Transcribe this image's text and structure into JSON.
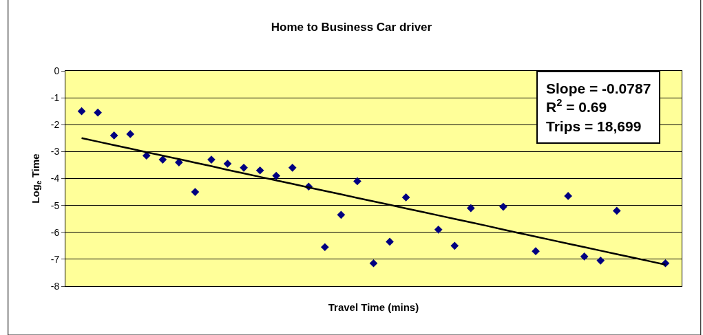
{
  "chart_data": {
    "type": "scatter",
    "title": "Home to Business Car driver",
    "xlabel": "Travel Time (mins)",
    "ylabel": "Log$_{e}$ Time",
    "categories": [
      null,
      null,
      null,
      null,
      null,
      null,
      null,
      null,
      null,
      null,
      null,
      null,
      null,
      null,
      null,
      null,
      null,
      null,
      null,
      null,
      null,
      null,
      null,
      null,
      null,
      null,
      null,
      null,
      null,
      null,
      null,
      null,
      null,
      null,
      null,
      null,
      null
    ],
    "series": [
      {
        "color": "#000080",
        "marker": "diamond",
        "values": [
          -1.5,
          -1.55,
          -2.4,
          -2.35,
          -3.15,
          -3.3,
          -3.4,
          -4.5,
          -3.3,
          -3.45,
          -3.6,
          -3.7,
          -3.9,
          -3.6,
          -4.3,
          -6.55,
          -5.35,
          -4.1,
          -7.15,
          -6.35,
          -4.7,
          null,
          -5.9,
          -6.5,
          -5.1,
          null,
          -5.05,
          null,
          -6.7,
          null,
          -4.65,
          -6.9,
          -7.05,
          -5.2,
          null,
          null,
          -7.15
        ]
      },
      {
        "type": "line",
        "color": "#000000",
        "marker": "none",
        "values": [
          -2.5,
          -2.63,
          -2.76,
          -2.89,
          -3.02,
          -3.15,
          -3.28,
          -3.41,
          -3.54,
          -3.68,
          -3.81,
          -3.94,
          -4.07,
          -4.2,
          -4.33,
          -4.46,
          -4.59,
          -4.72,
          -4.85,
          -4.98,
          -5.11,
          -5.24,
          -5.37,
          -5.5,
          -5.63,
          -5.76,
          -5.9,
          -6.03,
          -6.16,
          -6.29,
          -6.42,
          -6.55,
          -6.68,
          -6.81,
          -6.94,
          -7.07,
          -7.2
        ]
      }
    ],
    "ylim": [
      -8,
      0
    ],
    "yticks": [
      0,
      -1,
      -2,
      -3,
      -4,
      -5,
      -6,
      -7,
      -8
    ],
    "grid": "y",
    "legend": false,
    "tick_labels": "y",
    "annotations": [
      "Slope = -0.0787",
      "R$^{2}$ = 0.69",
      "Trips = 18,699"
    ]
  }
}
